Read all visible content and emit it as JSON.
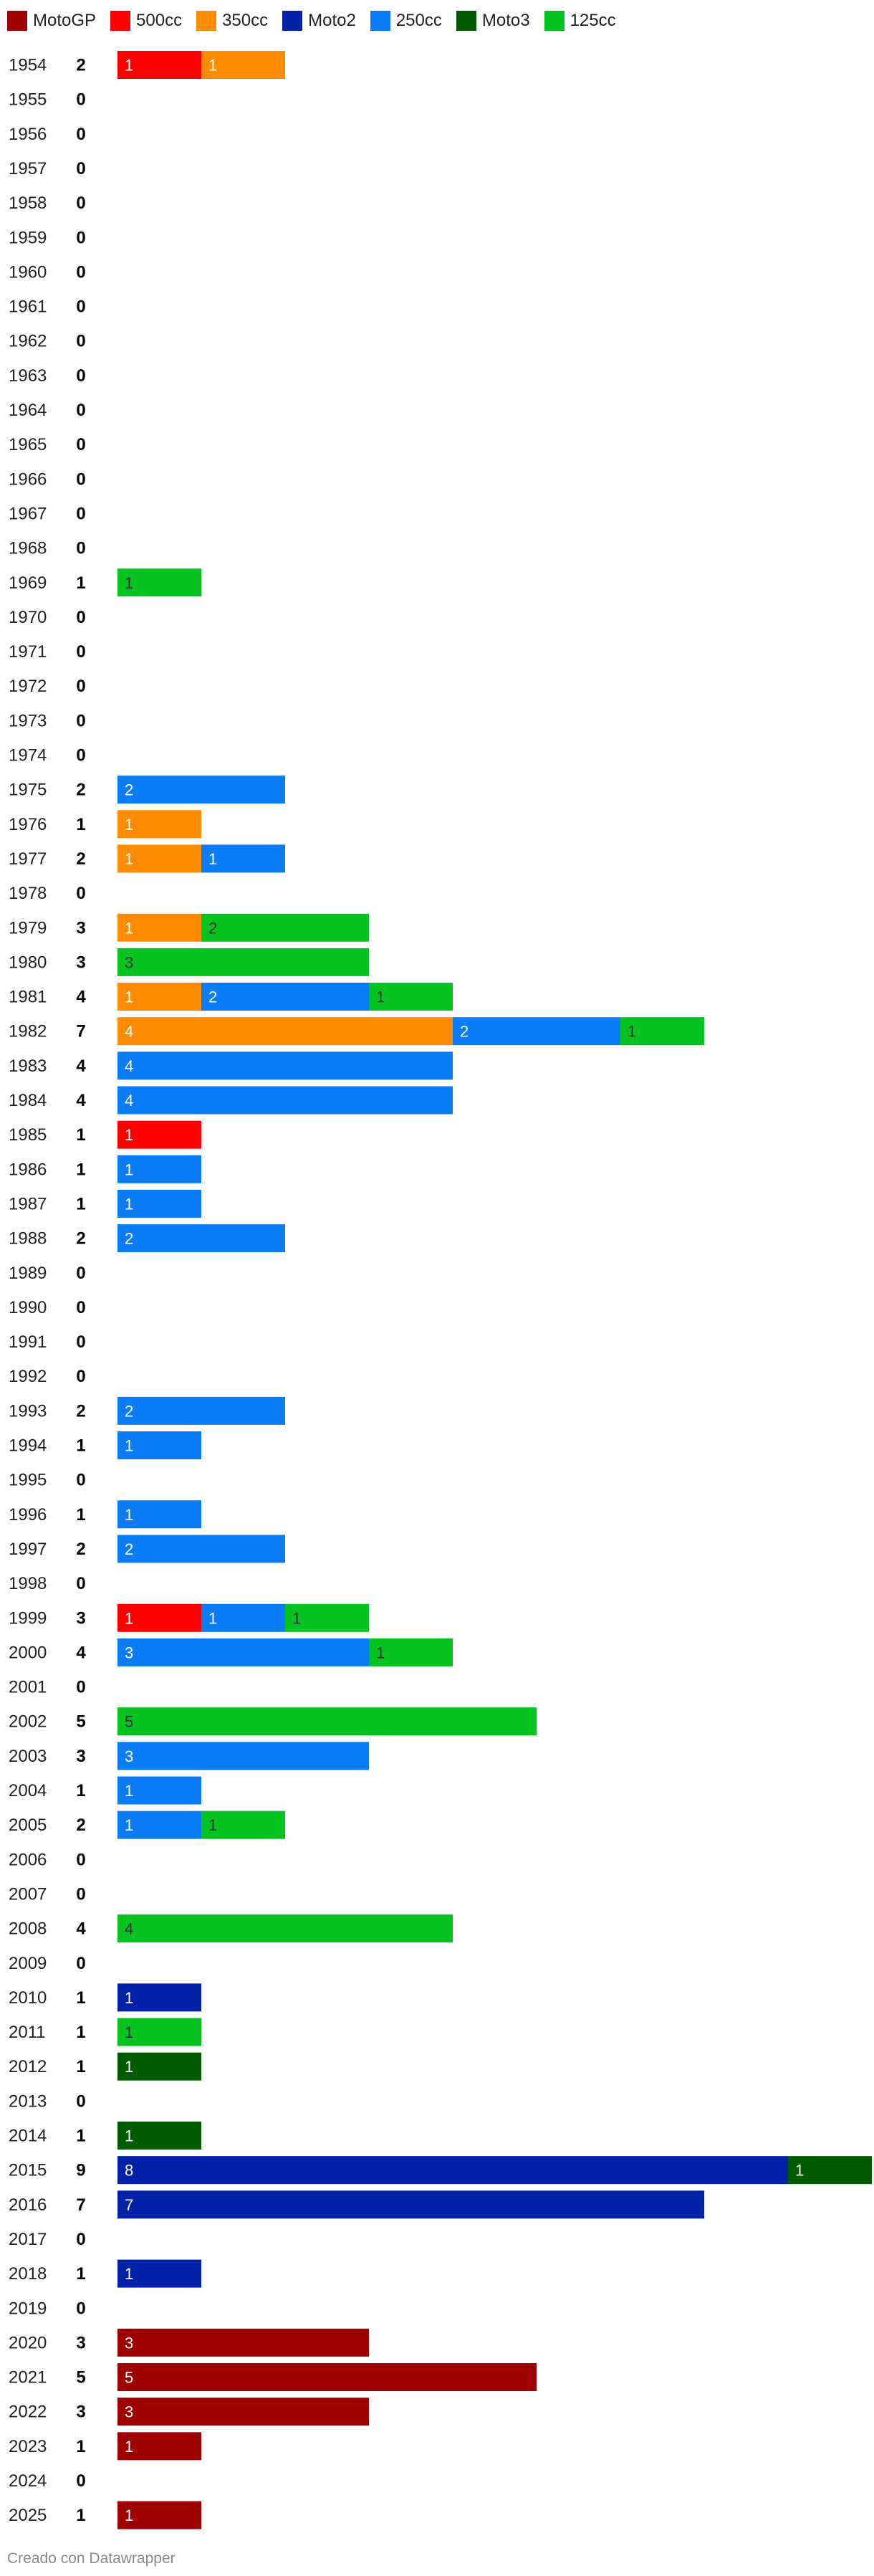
{
  "legend": [
    {
      "name": "MotoGP",
      "color": "#9e0000"
    },
    {
      "name": "500cc",
      "color": "#ff0000"
    },
    {
      "name": "350cc",
      "color": "#ff8c00"
    },
    {
      "name": "Moto2",
      "color": "#0021a8"
    },
    {
      "name": "250cc",
      "color": "#0a7cf5"
    },
    {
      "name": "Moto3",
      "color": "#005a00"
    },
    {
      "name": "125cc",
      "color": "#05c421"
    }
  ],
  "chart_data": {
    "type": "bar",
    "orientation": "horizontal",
    "stacked": true,
    "grid": false,
    "legend_position": "top-left",
    "categories": [
      "1954",
      "1955",
      "1956",
      "1957",
      "1958",
      "1959",
      "1960",
      "1961",
      "1962",
      "1963",
      "1964",
      "1965",
      "1966",
      "1967",
      "1968",
      "1969",
      "1970",
      "1971",
      "1972",
      "1973",
      "1974",
      "1975",
      "1976",
      "1977",
      "1978",
      "1979",
      "1980",
      "1981",
      "1982",
      "1983",
      "1984",
      "1985",
      "1986",
      "1987",
      "1988",
      "1989",
      "1990",
      "1991",
      "1992",
      "1993",
      "1994",
      "1995",
      "1996",
      "1997",
      "1998",
      "1999",
      "2000",
      "2001",
      "2002",
      "2003",
      "2004",
      "2005",
      "2006",
      "2007",
      "2008",
      "2009",
      "2010",
      "2011",
      "2012",
      "2013",
      "2014",
      "2015",
      "2016",
      "2017",
      "2018",
      "2019",
      "2020",
      "2021",
      "2022",
      "2023",
      "2024",
      "2025"
    ],
    "totals": [
      2,
      0,
      0,
      0,
      0,
      0,
      0,
      0,
      0,
      0,
      0,
      0,
      0,
      0,
      0,
      1,
      0,
      0,
      0,
      0,
      0,
      2,
      1,
      2,
      0,
      3,
      3,
      4,
      7,
      4,
      4,
      1,
      1,
      1,
      2,
      0,
      0,
      0,
      0,
      2,
      1,
      0,
      1,
      2,
      0,
      3,
      4,
      0,
      5,
      3,
      1,
      2,
      0,
      0,
      4,
      0,
      1,
      1,
      1,
      0,
      1,
      9,
      7,
      0,
      1,
      0,
      3,
      5,
      3,
      1,
      0,
      1
    ],
    "series": [
      {
        "name": "MotoGP",
        "values": [
          0,
          0,
          0,
          0,
          0,
          0,
          0,
          0,
          0,
          0,
          0,
          0,
          0,
          0,
          0,
          0,
          0,
          0,
          0,
          0,
          0,
          0,
          0,
          0,
          0,
          0,
          0,
          0,
          0,
          0,
          0,
          0,
          0,
          0,
          0,
          0,
          0,
          0,
          0,
          0,
          0,
          0,
          0,
          0,
          0,
          0,
          0,
          0,
          0,
          0,
          0,
          0,
          0,
          0,
          0,
          0,
          0,
          0,
          0,
          0,
          0,
          0,
          0,
          0,
          0,
          0,
          3,
          5,
          3,
          1,
          0,
          1
        ]
      },
      {
        "name": "500cc",
        "values": [
          1,
          0,
          0,
          0,
          0,
          0,
          0,
          0,
          0,
          0,
          0,
          0,
          0,
          0,
          0,
          0,
          0,
          0,
          0,
          0,
          0,
          0,
          0,
          0,
          0,
          0,
          0,
          0,
          0,
          0,
          0,
          1,
          0,
          0,
          0,
          0,
          0,
          0,
          0,
          0,
          0,
          0,
          0,
          0,
          0,
          1,
          0,
          0,
          0,
          0,
          0,
          0,
          0,
          0,
          0,
          0,
          0,
          0,
          0,
          0,
          0,
          0,
          0,
          0,
          0,
          0,
          0,
          0,
          0,
          0,
          0,
          0
        ]
      },
      {
        "name": "350cc",
        "values": [
          1,
          0,
          0,
          0,
          0,
          0,
          0,
          0,
          0,
          0,
          0,
          0,
          0,
          0,
          0,
          0,
          0,
          0,
          0,
          0,
          0,
          0,
          1,
          1,
          0,
          1,
          0,
          1,
          4,
          0,
          0,
          0,
          0,
          0,
          0,
          0,
          0,
          0,
          0,
          0,
          0,
          0,
          0,
          0,
          0,
          0,
          0,
          0,
          0,
          0,
          0,
          0,
          0,
          0,
          0,
          0,
          0,
          0,
          0,
          0,
          0,
          0,
          0,
          0,
          0,
          0,
          0,
          0,
          0,
          0,
          0,
          0
        ]
      },
      {
        "name": "Moto2",
        "values": [
          0,
          0,
          0,
          0,
          0,
          0,
          0,
          0,
          0,
          0,
          0,
          0,
          0,
          0,
          0,
          0,
          0,
          0,
          0,
          0,
          0,
          0,
          0,
          0,
          0,
          0,
          0,
          0,
          0,
          0,
          0,
          0,
          0,
          0,
          0,
          0,
          0,
          0,
          0,
          0,
          0,
          0,
          0,
          0,
          0,
          0,
          0,
          0,
          0,
          0,
          0,
          0,
          0,
          0,
          0,
          0,
          1,
          0,
          0,
          0,
          0,
          8,
          7,
          0,
          1,
          0,
          0,
          0,
          0,
          0,
          0,
          0
        ]
      },
      {
        "name": "250cc",
        "values": [
          0,
          0,
          0,
          0,
          0,
          0,
          0,
          0,
          0,
          0,
          0,
          0,
          0,
          0,
          0,
          0,
          0,
          0,
          0,
          0,
          0,
          2,
          0,
          1,
          0,
          0,
          0,
          2,
          2,
          4,
          4,
          0,
          1,
          1,
          2,
          0,
          0,
          0,
          0,
          2,
          1,
          0,
          1,
          2,
          0,
          1,
          3,
          0,
          0,
          3,
          1,
          1,
          0,
          0,
          0,
          0,
          0,
          0,
          0,
          0,
          0,
          0,
          0,
          0,
          0,
          0,
          0,
          0,
          0,
          0,
          0,
          0
        ]
      },
      {
        "name": "Moto3",
        "values": [
          0,
          0,
          0,
          0,
          0,
          0,
          0,
          0,
          0,
          0,
          0,
          0,
          0,
          0,
          0,
          0,
          0,
          0,
          0,
          0,
          0,
          0,
          0,
          0,
          0,
          0,
          0,
          0,
          0,
          0,
          0,
          0,
          0,
          0,
          0,
          0,
          0,
          0,
          0,
          0,
          0,
          0,
          0,
          0,
          0,
          0,
          0,
          0,
          0,
          0,
          0,
          0,
          0,
          0,
          0,
          0,
          0,
          0,
          1,
          0,
          1,
          1,
          0,
          0,
          0,
          0,
          0,
          0,
          0,
          0,
          0,
          0
        ]
      },
      {
        "name": "125cc",
        "values": [
          0,
          0,
          0,
          0,
          0,
          0,
          0,
          0,
          0,
          0,
          0,
          0,
          0,
          0,
          0,
          1,
          0,
          0,
          0,
          0,
          0,
          0,
          0,
          0,
          0,
          2,
          3,
          1,
          1,
          0,
          0,
          0,
          0,
          0,
          0,
          0,
          0,
          0,
          0,
          0,
          0,
          0,
          0,
          0,
          0,
          1,
          1,
          0,
          5,
          0,
          0,
          1,
          0,
          0,
          4,
          0,
          0,
          1,
          0,
          0,
          0,
          0,
          0,
          0,
          0,
          0,
          0,
          0,
          0,
          0,
          0,
          0
        ]
      }
    ],
    "label_colors": {
      "MotoGP": "#ffffff",
      "500cc": "#ffffff",
      "350cc": "#ffffff",
      "Moto2": "#ffffff",
      "250cc": "#ffffff",
      "Moto3": "#ffffff",
      "125cc": "#333333"
    }
  },
  "footer": {
    "credit": "Creado con Datawrapper"
  }
}
